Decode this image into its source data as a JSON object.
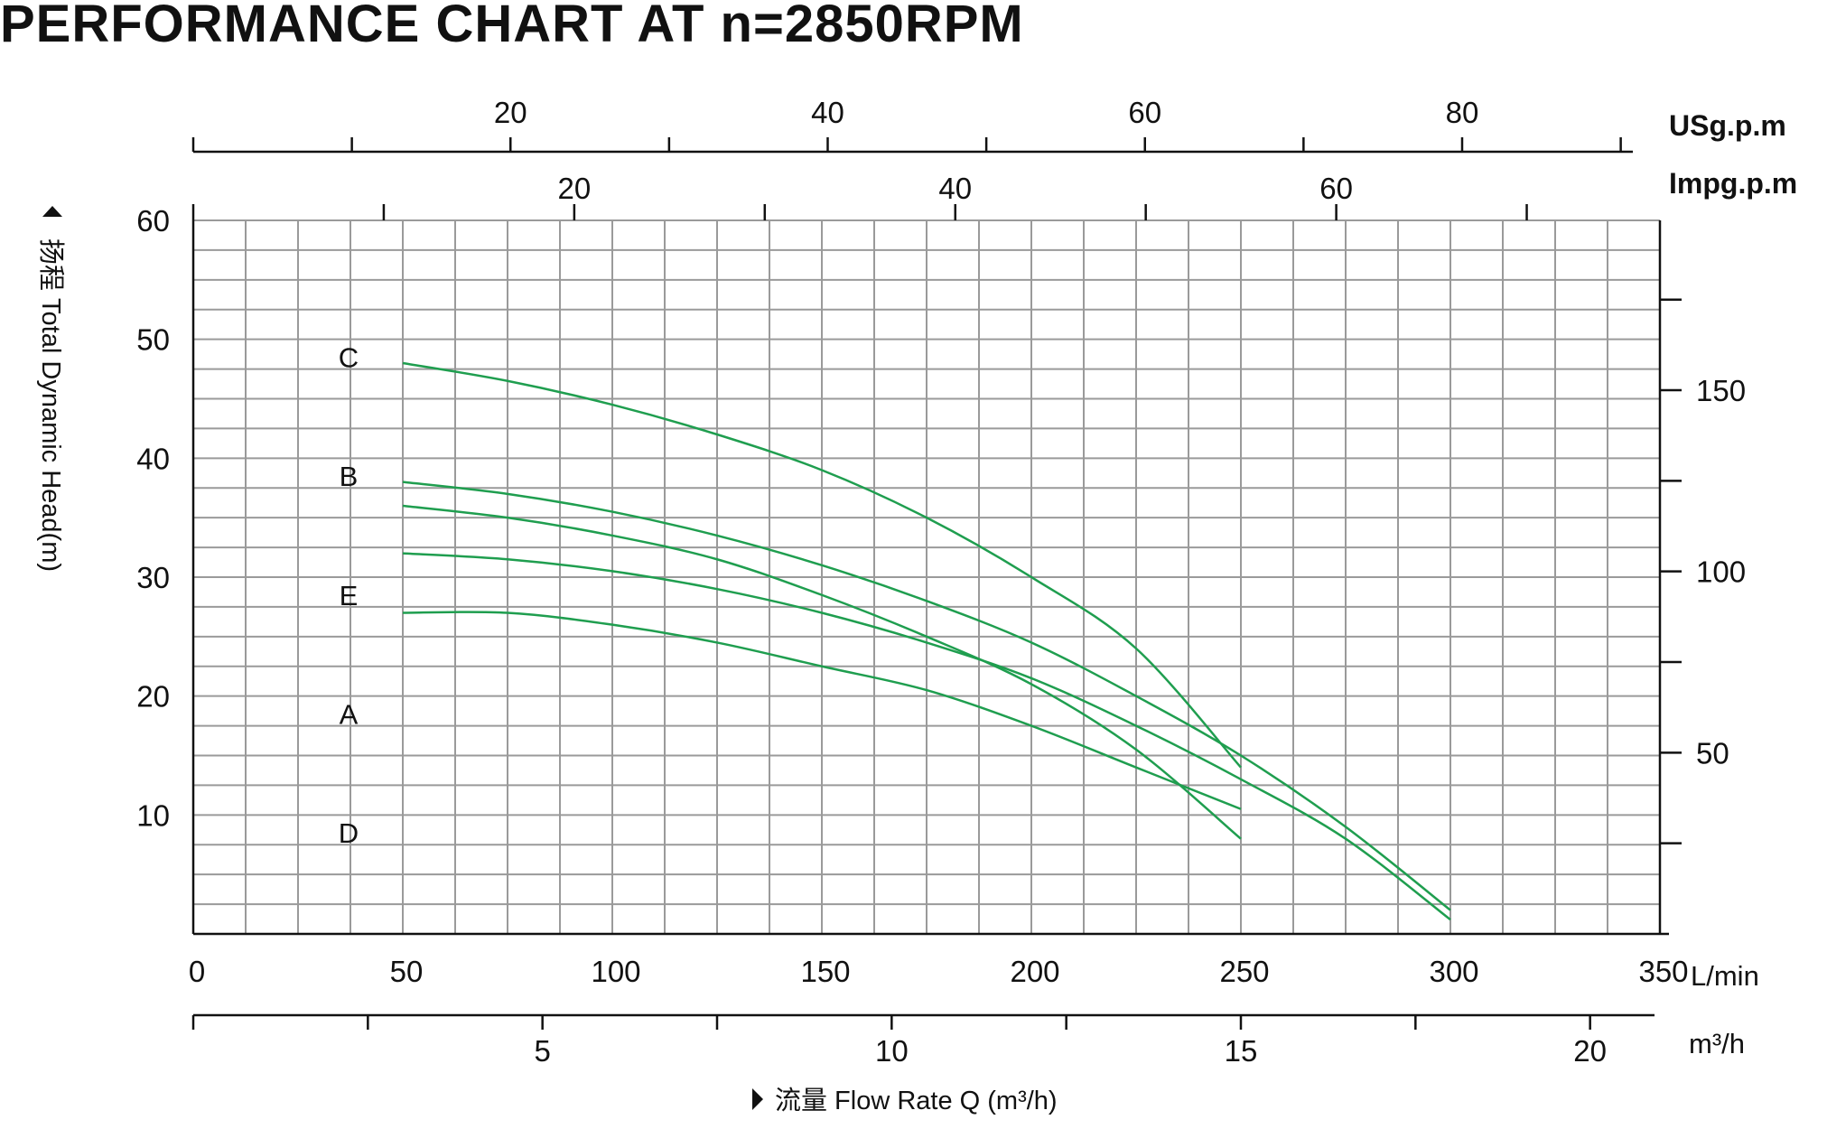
{
  "title": "PERFORMANCE CHART AT n=2850RPM",
  "colors": {
    "curve": "#1f9e4f",
    "grid": "#9a9a9a",
    "axis": "#111111",
    "text": "#111111"
  },
  "chart_data": {
    "type": "line",
    "title": "PERFORMANCE CHART AT n=2850RPM",
    "xlabel": "流量 Flow Rate Q (m³/h)",
    "ylabel": "扬程 Total Dynamic Head(m)",
    "xlim": [
      0,
      350
    ],
    "ylim": [
      0,
      60
    ],
    "grid": true,
    "x_unit": "L/min",
    "y_ticks": [
      10,
      20,
      30,
      40,
      50,
      60
    ],
    "x_ticks_lmin": [
      0,
      50,
      100,
      150,
      200,
      250,
      300,
      350
    ],
    "secondary_axes": {
      "m3h": {
        "unit": "m³/h",
        "labels": [
          "5",
          "10",
          "15",
          "20"
        ],
        "label_values": [
          5,
          10,
          15,
          20
        ],
        "minor_values": [
          0,
          2.5,
          7.5,
          12.5,
          17.5
        ]
      },
      "usgpm": {
        "unit": "USg.p.m",
        "labels": [
          "20",
          "40",
          "60",
          "80"
        ],
        "label_values": [
          20,
          40,
          60,
          80
        ],
        "minor_values": [
          0,
          10,
          30,
          50,
          70,
          90
        ]
      },
      "impgpm": {
        "unit": "Impg.p.m",
        "labels": [
          "20",
          "40",
          "60"
        ],
        "label_values": [
          20,
          40,
          60
        ],
        "minor_values": [
          0,
          10,
          30,
          50,
          70
        ]
      },
      "feet": {
        "labels": [
          "50",
          "100",
          "150"
        ],
        "label_values": [
          50,
          100,
          150
        ],
        "minor_values": [
          25,
          75,
          125,
          175
        ]
      }
    },
    "series": [
      {
        "name": "C",
        "x": [
          50,
          75,
          100,
          125,
          150,
          175,
          200,
          225,
          250
        ],
        "y": [
          48,
          46.5,
          44.5,
          42,
          39,
          35,
          30,
          24,
          14
        ]
      },
      {
        "name": "B",
        "x": [
          50,
          75,
          100,
          125,
          150,
          175,
          200,
          225,
          250,
          275,
          300
        ],
        "y": [
          38,
          37,
          35.5,
          33.5,
          31,
          28,
          24.5,
          20,
          15,
          9,
          2
        ]
      },
      {
        "name": "E",
        "x": [
          50,
          75,
          100,
          125,
          150,
          175,
          200,
          225,
          250
        ],
        "y": [
          36,
          35,
          33.5,
          31.5,
          28.5,
          25,
          21,
          15.5,
          8
        ]
      },
      {
        "name": "A",
        "x": [
          50,
          75,
          100,
          125,
          150,
          175,
          200,
          225,
          250,
          275,
          300
        ],
        "y": [
          32,
          31.5,
          30.5,
          29,
          27,
          24.5,
          21.5,
          17.5,
          13,
          8,
          1.2
        ]
      },
      {
        "name": "D",
        "x": [
          50,
          75,
          100,
          125,
          150,
          175,
          200,
          225,
          250
        ],
        "y": [
          27,
          27,
          26,
          24.5,
          22.5,
          20.5,
          17.5,
          14,
          10.5
        ]
      }
    ],
    "curve_labels": [
      {
        "text": "C",
        "y": 48.5
      },
      {
        "text": "B",
        "y": 38.5
      },
      {
        "text": "E",
        "y": 28.5
      },
      {
        "text": "A",
        "y": 18.5
      },
      {
        "text": "D",
        "y": 8.5
      }
    ]
  }
}
